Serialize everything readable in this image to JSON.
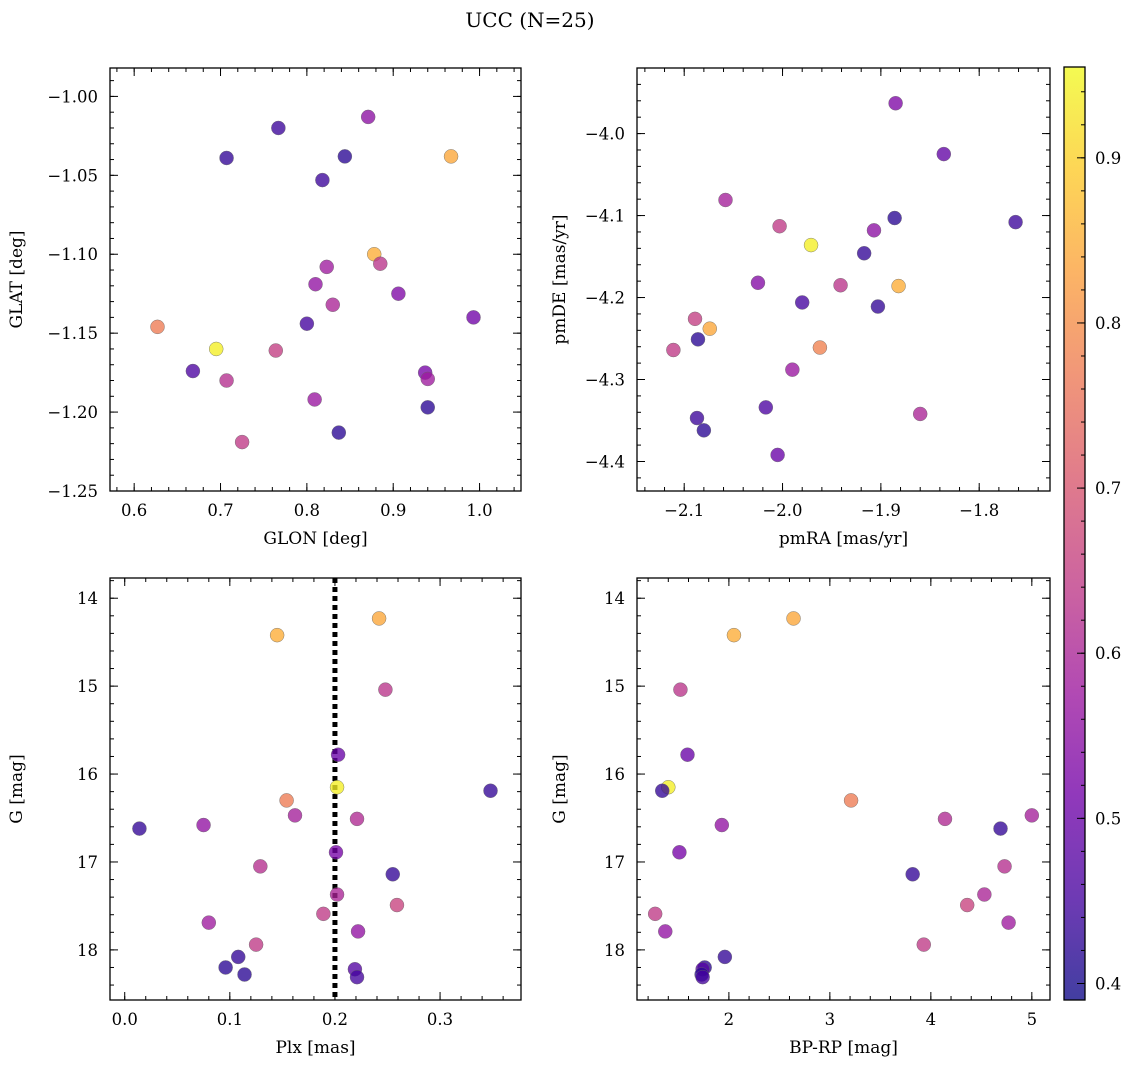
{
  "figure": {
    "title": "UCC (N=25)"
  },
  "colorbar": {
    "colormap": "plasma",
    "vmin": 0.39,
    "vmax": 0.955,
    "ticks": [
      0.4,
      0.5,
      0.6,
      0.7,
      0.8,
      0.9
    ],
    "tick_labels": [
      "0.4",
      "0.5",
      "0.6",
      "0.7",
      "0.8",
      "0.9"
    ]
  },
  "chart_data": [
    {
      "type": "scatter",
      "title": "",
      "xlabel": "GLON [deg]",
      "ylabel": "GLAT [deg]",
      "xlim": [
        0.572,
        1.048
      ],
      "ylim": [
        -1.25,
        -0.982
      ],
      "y_inverted": false,
      "xticks": [
        0.6,
        0.7,
        0.8,
        0.9,
        1.0
      ],
      "xtick_labels": [
        "0.6",
        "0.7",
        "0.8",
        "0.9",
        "1.0"
      ],
      "yticks": [
        -1.25,
        -1.2,
        -1.15,
        -1.1,
        -1.05,
        -1.0
      ],
      "ytick_labels": [
        "−1.25",
        "−1.20",
        "−1.15",
        "−1.10",
        "−1.05",
        "−1.00"
      ],
      "x_minor_step": 0.02,
      "y_minor_step": 0.01,
      "x": [
        0.767,
        0.871,
        0.707,
        0.844,
        0.967,
        0.818,
        0.878,
        0.823,
        0.885,
        0.81,
        0.906,
        0.83,
        0.993,
        0.8,
        0.627,
        0.695,
        0.764,
        0.668,
        0.707,
        0.937,
        0.94,
        0.809,
        0.94,
        0.725,
        0.837
      ],
      "y": [
        -1.02,
        -1.013,
        -1.039,
        -1.038,
        -1.038,
        -1.053,
        -1.1,
        -1.108,
        -1.106,
        -1.119,
        -1.125,
        -1.132,
        -1.14,
        -1.144,
        -1.146,
        -1.16,
        -1.161,
        -1.174,
        -1.18,
        -1.175,
        -1.179,
        -1.192,
        -1.197,
        -1.219,
        -1.213
      ],
      "c": [
        0.44,
        0.55,
        0.43,
        0.42,
        0.84,
        0.44,
        0.85,
        0.58,
        0.63,
        0.56,
        0.53,
        0.6,
        0.51,
        0.45,
        0.77,
        0.94,
        0.65,
        0.46,
        0.62,
        0.52,
        0.58,
        0.57,
        0.42,
        0.64,
        0.42
      ]
    },
    {
      "type": "scatter",
      "title": "",
      "xlabel": "pmRA [mas/yr]",
      "ylabel": "pmDE [mas/yr]",
      "xlim": [
        -2.148,
        -1.728
      ],
      "ylim": [
        -4.436,
        -3.92
      ],
      "y_inverted": false,
      "xticks": [
        -2.1,
        -2.0,
        -1.9,
        -1.8
      ],
      "xtick_labels": [
        "−2.1",
        "−2.0",
        "−1.9",
        "−1.8"
      ],
      "yticks": [
        -4.4,
        -4.3,
        -4.2,
        -4.1,
        -4.0
      ],
      "ytick_labels": [
        "−4.4",
        "−4.3",
        "−4.2",
        "−4.1",
        "−4.0"
      ],
      "x_minor_step": 0.02,
      "y_minor_step": 0.02,
      "x": [
        -1.885,
        -1.836,
        -2.058,
        -1.886,
        -1.763,
        -2.003,
        -1.907,
        -1.971,
        -1.917,
        -2.025,
        -1.941,
        -1.882,
        -1.98,
        -1.903,
        -2.089,
        -2.111,
        -2.086,
        -2.074,
        -1.962,
        -1.99,
        -1.86,
        -2.017,
        -2.087,
        -2.08,
        -2.005
      ],
      "y": [
        -3.963,
        -4.025,
        -4.081,
        -4.103,
        -4.108,
        -4.113,
        -4.118,
        -4.136,
        -4.146,
        -4.182,
        -4.185,
        -4.186,
        -4.206,
        -4.211,
        -4.226,
        -4.264,
        -4.251,
        -4.238,
        -4.261,
        -4.288,
        -4.342,
        -4.334,
        -4.347,
        -4.362,
        -4.392
      ],
      "c": [
        0.53,
        0.49,
        0.59,
        0.42,
        0.44,
        0.64,
        0.55,
        0.94,
        0.43,
        0.54,
        0.63,
        0.85,
        0.45,
        0.43,
        0.65,
        0.64,
        0.42,
        0.84,
        0.78,
        0.57,
        0.6,
        0.46,
        0.44,
        0.42,
        0.5
      ]
    },
    {
      "type": "scatter",
      "title": "",
      "xlabel": "Plx [mas]",
      "ylabel": "G [mag]",
      "xlim": [
        -0.014,
        0.377
      ],
      "ylim": [
        18.57,
        13.77
      ],
      "y_inverted": true,
      "xticks": [
        0.0,
        0.1,
        0.2,
        0.3
      ],
      "xtick_labels": [
        "0.0",
        "0.1",
        "0.2",
        "0.3"
      ],
      "yticks": [
        14,
        15,
        16,
        17,
        18
      ],
      "ytick_labels": [
        "14",
        "15",
        "16",
        "17",
        "18"
      ],
      "x_minor_step": 0.02,
      "y_minor_step": 0.2,
      "vline": 0.2,
      "x": [
        0.242,
        0.145,
        0.248,
        0.203,
        0.202,
        0.348,
        0.154,
        0.014,
        0.075,
        0.162,
        0.221,
        0.201,
        0.129,
        0.255,
        0.202,
        0.259,
        0.189,
        0.08,
        0.222,
        0.125,
        0.108,
        0.096,
        0.219,
        0.114,
        0.221
      ],
      "y": [
        14.23,
        14.42,
        15.04,
        15.78,
        16.15,
        16.19,
        16.3,
        16.62,
        16.58,
        16.47,
        16.51,
        16.89,
        17.05,
        17.14,
        17.37,
        17.49,
        17.59,
        17.69,
        17.79,
        17.94,
        18.08,
        18.2,
        18.22,
        18.28,
        18.31
      ],
      "c": [
        0.84,
        0.85,
        0.63,
        0.5,
        0.94,
        0.43,
        0.77,
        0.43,
        0.56,
        0.59,
        0.61,
        0.52,
        0.62,
        0.43,
        0.6,
        0.66,
        0.64,
        0.58,
        0.56,
        0.64,
        0.43,
        0.42,
        0.47,
        0.42,
        0.45
      ]
    },
    {
      "type": "scatter",
      "title": "",
      "xlabel": "BP-RP [mag]",
      "ylabel": "G [mag]",
      "xlim": [
        1.09,
        5.18
      ],
      "ylim": [
        18.57,
        13.77
      ],
      "y_inverted": true,
      "xticks": [
        2,
        3,
        4,
        5
      ],
      "xtick_labels": [
        "2",
        "3",
        "4",
        "5"
      ],
      "yticks": [
        14,
        15,
        16,
        17,
        18
      ],
      "ytick_labels": [
        "14",
        "15",
        "16",
        "17",
        "18"
      ],
      "x_minor_step": 0.2,
      "y_minor_step": 0.2,
      "x": [
        2.64,
        2.05,
        1.52,
        1.59,
        1.4,
        1.34,
        3.21,
        4.69,
        1.93,
        5.0,
        4.14,
        1.51,
        4.73,
        3.82,
        4.53,
        4.36,
        1.27,
        4.77,
        1.37,
        3.93,
        1.96,
        1.76,
        1.74,
        1.73,
        1.74
      ],
      "y": [
        14.23,
        14.42,
        15.04,
        15.78,
        16.15,
        16.19,
        16.3,
        16.62,
        16.58,
        16.47,
        16.51,
        16.89,
        17.05,
        17.14,
        17.37,
        17.49,
        17.59,
        17.69,
        17.79,
        17.94,
        18.08,
        18.2,
        18.22,
        18.28,
        18.31
      ],
      "c": [
        0.84,
        0.85,
        0.63,
        0.5,
        0.94,
        0.43,
        0.77,
        0.43,
        0.56,
        0.59,
        0.61,
        0.52,
        0.62,
        0.43,
        0.6,
        0.66,
        0.64,
        0.58,
        0.56,
        0.64,
        0.43,
        0.42,
        0.47,
        0.42,
        0.45
      ]
    }
  ]
}
